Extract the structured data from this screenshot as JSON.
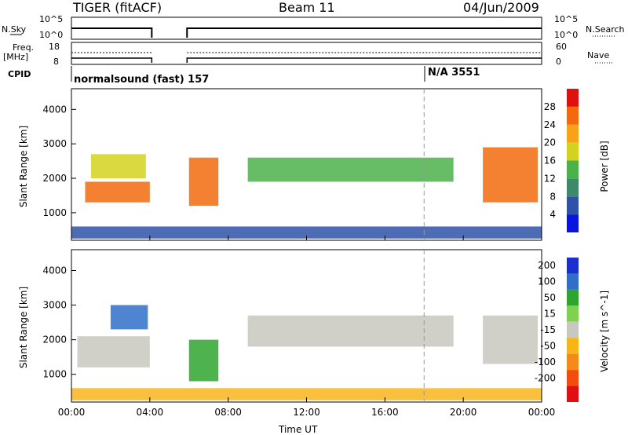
{
  "header": {
    "title": "TIGER (fitACF)",
    "beam": "Beam 11",
    "date": "04/Jun/2009"
  },
  "strip": {
    "nsky_label": "N.Sky",
    "nsearch_label": "N.Search",
    "freq_label_1": "Freq.",
    "freq_label_2": "[MHz]",
    "nave_label": "Nave",
    "cpid_label": "CPID",
    "nsky_ticks": [
      "10^5",
      "10^0"
    ],
    "nsearch_ticks": [
      "10^5",
      "10^0"
    ],
    "freq_ticks": [
      "18",
      "8"
    ],
    "nave_ticks": [
      "60",
      "0"
    ],
    "cpid_1": "normalsound (fast) 157",
    "cpid_2": "N/A 3551"
  },
  "chart_data": [
    {
      "type": "heatmap",
      "panel": "power",
      "xlabel": "",
      "ylabel": "Slant Range [km]",
      "x_ticks": [
        "00:00",
        "04:00",
        "08:00",
        "12:00",
        "16:00",
        "20:00",
        "00:00"
      ],
      "y_ticks": [
        1000,
        2000,
        3000,
        4000
      ],
      "ylim": [
        200,
        4600
      ],
      "xlim_hours": [
        0,
        24
      ],
      "colorbar_label": "Power [dB]",
      "colorbar_ticks": [
        4,
        8,
        12,
        16,
        20,
        24,
        28
      ],
      "colors": [
        "#0a14dc",
        "#2f52a8",
        "#3d8a6a",
        "#4bb24b",
        "#d4d21e",
        "#f7a319",
        "#f26a0d",
        "#e01010"
      ],
      "data_gap_hours": [
        [
          4.1,
          5.9
        ]
      ],
      "echo_regions": [
        {
          "t": [
            0.7,
            4.0
          ],
          "range": [
            1300,
            1900
          ],
          "level": 26
        },
        {
          "t": [
            1.0,
            3.8
          ],
          "range": [
            2000,
            2700
          ],
          "level": 18
        },
        {
          "t": [
            6.0,
            7.5
          ],
          "range": [
            1200,
            2600
          ],
          "level": 24
        },
        {
          "t": [
            9.0,
            19.5
          ],
          "range": [
            1900,
            2600
          ],
          "level": 14
        },
        {
          "t": [
            21.0,
            23.8
          ],
          "range": [
            1300,
            2900
          ],
          "level": 24
        },
        {
          "t": [
            0.0,
            24.0
          ],
          "range": [
            250,
            600
          ],
          "level": 6
        }
      ]
    },
    {
      "type": "heatmap",
      "panel": "velocity",
      "xlabel": "Time UT",
      "ylabel": "Slant Range [km]",
      "x_ticks": [
        "00:00",
        "04:00",
        "08:00",
        "12:00",
        "16:00",
        "20:00",
        "00:00"
      ],
      "y_ticks": [
        1000,
        2000,
        3000,
        4000
      ],
      "ylim": [
        200,
        4600
      ],
      "xlim_hours": [
        0,
        24
      ],
      "colorbar_label": "Velocity [m s^-1]",
      "colorbar_ticks": [
        200,
        100,
        50,
        15,
        -15,
        -50,
        -100,
        -200
      ],
      "colors": [
        "#1b2fcc",
        "#2f6fc8",
        "#2fa52f",
        "#7fd24f",
        "#c8c8c0",
        "#f7b51a",
        "#f5891a",
        "#f24d0f",
        "#e01010"
      ],
      "data_gap_hours": [
        [
          4.1,
          5.9
        ]
      ],
      "echo_regions": [
        {
          "t": [
            0.3,
            4.0
          ],
          "range": [
            1200,
            2100
          ],
          "level": 0
        },
        {
          "t": [
            2.0,
            3.9
          ],
          "range": [
            2300,
            3000
          ],
          "level": 150
        },
        {
          "t": [
            6.0,
            7.5
          ],
          "range": [
            800,
            2000
          ],
          "level": 60
        },
        {
          "t": [
            9.0,
            19.5
          ],
          "range": [
            1800,
            2700
          ],
          "level": 0
        },
        {
          "t": [
            21.0,
            23.8
          ],
          "range": [
            1300,
            2700
          ],
          "level": 0
        },
        {
          "t": [
            0.0,
            24.0
          ],
          "range": [
            250,
            600
          ],
          "level": -50
        }
      ]
    }
  ]
}
